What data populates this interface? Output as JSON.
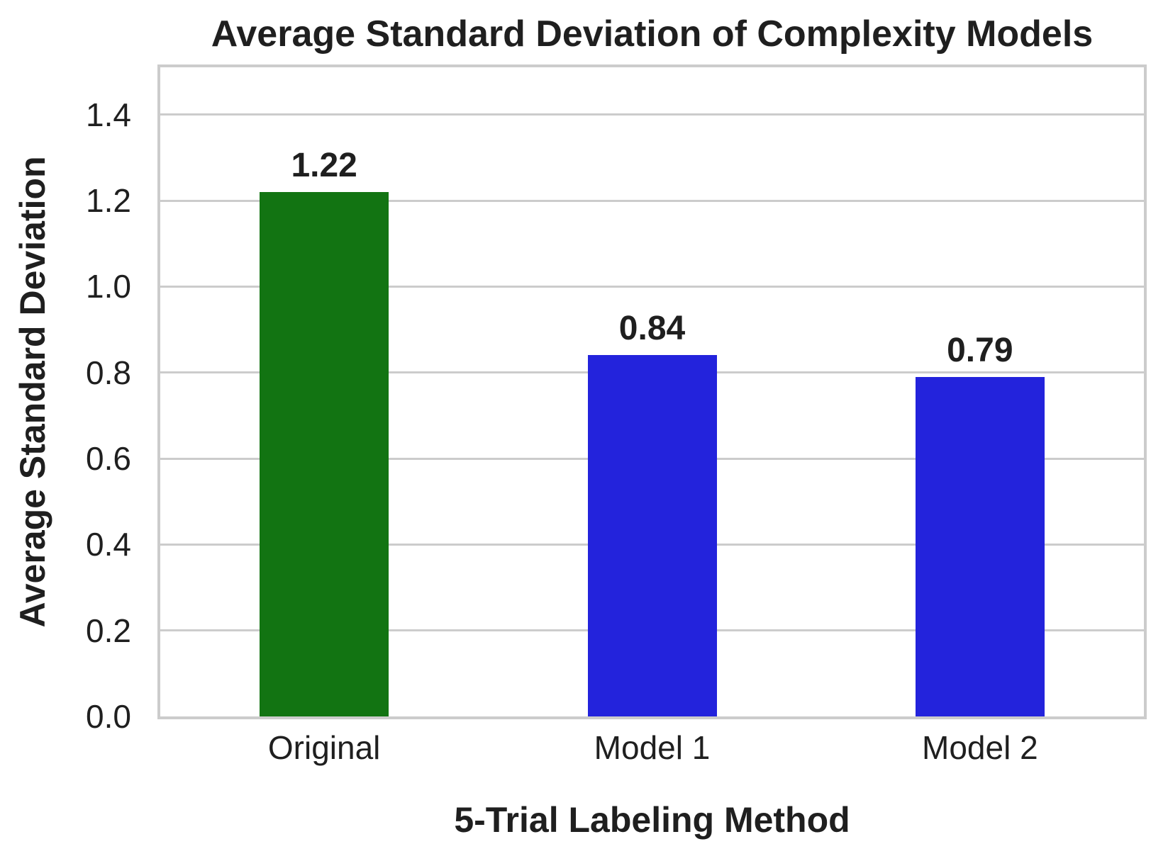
{
  "chart_data": {
    "type": "bar",
    "title": "Average Standard Deviation of Complexity Models",
    "xlabel": "5-Trial Labeling Method",
    "ylabel": "Average Standard Deviation",
    "categories": [
      "Original",
      "Model 1",
      "Model 2"
    ],
    "values": [
      1.22,
      0.84,
      0.79
    ],
    "value_labels": [
      "1.22",
      "0.84",
      "0.79"
    ],
    "bar_colors": [
      "#127412",
      "#2323DC",
      "#2323DC"
    ],
    "yticks": [
      0.0,
      0.2,
      0.4,
      0.6,
      0.8,
      1.0,
      1.2,
      1.4
    ],
    "ytick_labels": [
      "0.0",
      "0.2",
      "0.4",
      "0.6",
      "0.8",
      "1.0",
      "1.2",
      "1.4"
    ],
    "ylim": [
      0,
      1.51
    ],
    "grid": "horizontal",
    "legend": "none",
    "styles": {
      "grid_color": "#CCCCCC",
      "spine_color": "#CCCCCC",
      "text_color": "#1F1F1F",
      "background": "#FFFFFF"
    }
  }
}
